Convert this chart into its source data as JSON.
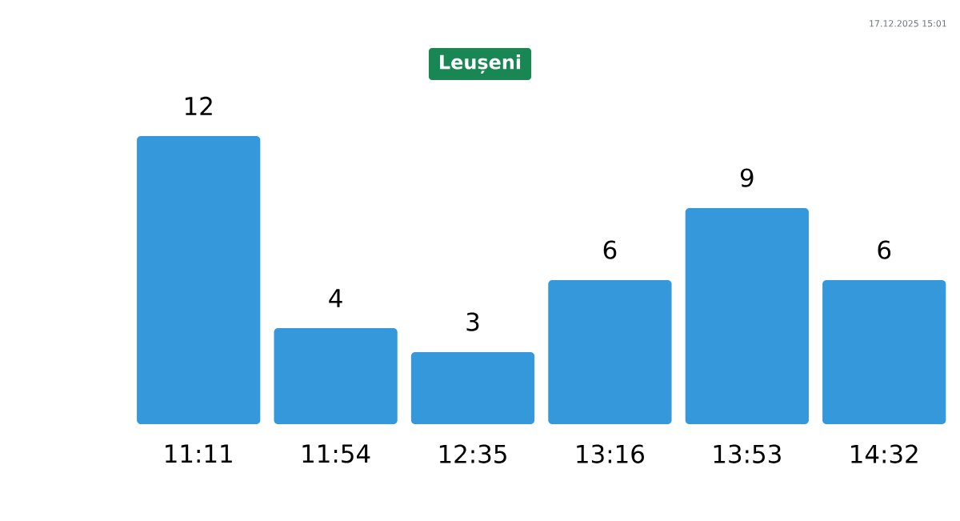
{
  "chart_data": {
    "type": "bar",
    "title": "Leușeni",
    "categories": [
      "11:11",
      "11:54",
      "12:35",
      "13:16",
      "13:53",
      "14:32"
    ],
    "values": [
      12,
      4,
      3,
      6,
      9,
      6
    ],
    "color": "#3598db",
    "data_labels": true,
    "annotations": [
      "17.12.2025 15:01"
    ]
  }
}
